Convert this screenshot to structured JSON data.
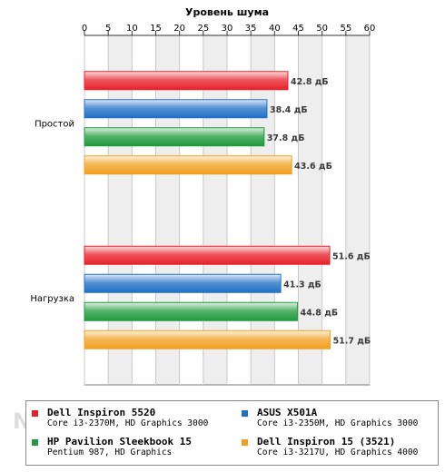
{
  "chart_data": {
    "type": "bar",
    "orientation": "horizontal",
    "title": "Уровень шума",
    "categories": [
      "Простой",
      "Нагрузка"
    ],
    "xlim": [
      0,
      60
    ],
    "ticks": [
      "0",
      "5",
      "10",
      "15",
      "20",
      "25",
      "30",
      "35",
      "40",
      "45",
      "50",
      "55",
      "60"
    ],
    "grid": true,
    "value_suffix": " дБ",
    "series": [
      {
        "name": "Dell Inspiron 5520",
        "spec": "Core i3-2370M, HD Graphics 3000",
        "color": "#e8202a",
        "values": [
          42.8,
          51.6
        ],
        "labels": [
          "42.8 дБ",
          "51.6 дБ"
        ]
      },
      {
        "name": "ASUS X501A",
        "spec": "Core i3-2350M, HD Graphics 3000",
        "color": "#1f6fc5",
        "values": [
          38.4,
          41.3
        ],
        "labels": [
          "38.4 дБ",
          "41.3 дБ"
        ]
      },
      {
        "name": "HP Pavilion Sleekbook 15",
        "spec": "Pentium 987, HD Graphics",
        "color": "#1f9a3c",
        "values": [
          37.8,
          44.8
        ],
        "labels": [
          "37.8 дБ",
          "44.8 дБ"
        ]
      },
      {
        "name": "Dell Inspiron 15 (3521)",
        "spec": "Core i3-3217U, HD Graphics 4000",
        "color": "#f0a020",
        "values": [
          43.6,
          51.7
        ],
        "labels": [
          "43.6 дБ",
          "51.7 дБ"
        ]
      }
    ],
    "legend_position": "bottom"
  },
  "watermark": "NOTEBOOK"
}
